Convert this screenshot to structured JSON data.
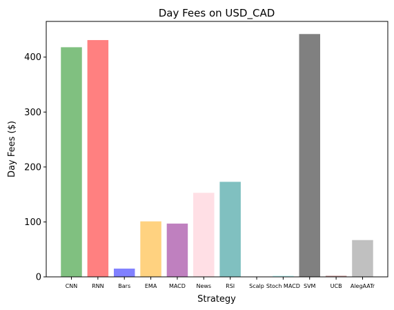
{
  "chart_data": {
    "type": "bar",
    "title": "Day Fees on USD_CAD",
    "xlabel": "Strategy",
    "ylabel": "Day Fees ($)",
    "ylim": [
      0,
      465
    ],
    "yticks": [
      0,
      100,
      200,
      300,
      400
    ],
    "grid": false,
    "categories": [
      "CNN",
      "RNN",
      "Bars",
      "EMA",
      "MACD",
      "News",
      "RSI",
      "Scalp",
      "Stoch MACD",
      "SVM",
      "UCB",
      "AlegAATr"
    ],
    "values": [
      418,
      431,
      15,
      101,
      97,
      153,
      173,
      0,
      2,
      442,
      2,
      67
    ],
    "colors": [
      "#80c080",
      "#ff8080",
      "#8080ff",
      "#ffd280",
      "#bf80bf",
      "#ffdfe5",
      "#80c0c0",
      "#c0c0c0",
      "#c0ffff",
      "#808080",
      "#bf9090",
      "#c0c0c0"
    ]
  }
}
